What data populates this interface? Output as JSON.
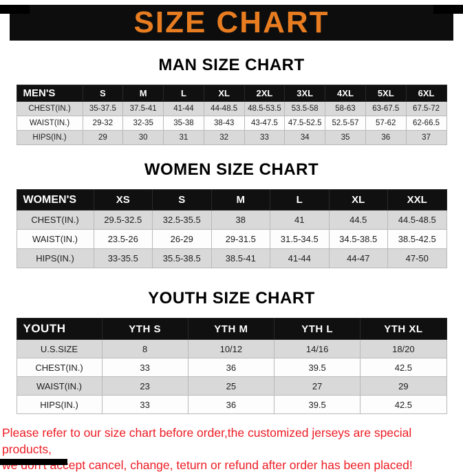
{
  "banner": {
    "title": "SIZE CHART",
    "title_color": "#e87c20",
    "background_color": "#0d0d0d"
  },
  "sections": [
    {
      "heading": "MAN SIZE CHART",
      "table": {
        "header": [
          "MEN'S",
          "S",
          "M",
          "L",
          "XL",
          "2XL",
          "3XL",
          "4XL",
          "5XL",
          "6XL"
        ],
        "rows": [
          [
            "CHEST(IN.)",
            "35-37.5",
            "37.5-41",
            "41-44",
            "44-48.5",
            "48.5-53.5",
            "53.5-58",
            "58-63",
            "63-67.5",
            "67.5-72"
          ],
          [
            "WAIST(IN.)",
            "29-32",
            "32-35",
            "35-38",
            "38-43",
            "43-47.5",
            "47.5-52.5",
            "52.5-57",
            "57-62",
            "62-66.5"
          ],
          [
            "HIPS(IN.)",
            "29",
            "30",
            "31",
            "32",
            "33",
            "34",
            "35",
            "36",
            "37"
          ]
        ]
      }
    },
    {
      "heading": "WOMEN SIZE CHART",
      "table": {
        "header": [
          "WOMEN'S",
          "XS",
          "S",
          "M",
          "L",
          "XL",
          "XXL"
        ],
        "rows": [
          [
            "CHEST(IN.)",
            "29.5-32.5",
            "32.5-35.5",
            "38",
            "41",
            "44.5",
            "44.5-48.5"
          ],
          [
            "WAIST(IN.)",
            "23.5-26",
            "26-29",
            "29-31.5",
            "31.5-34.5",
            "34.5-38.5",
            "38.5-42.5"
          ],
          [
            "HIPS(IN.)",
            "33-35.5",
            "35.5-38.5",
            "38.5-41",
            "41-44",
            "44-47",
            "47-50"
          ]
        ]
      }
    },
    {
      "heading": "YOUTH SIZE CHART",
      "table": {
        "header": [
          "YOUTH",
          "YTH S",
          "YTH M",
          "YTH L",
          "YTH XL"
        ],
        "rows": [
          [
            "U.S.SIZE",
            "8",
            "10/12",
            "14/16",
            "18/20"
          ],
          [
            "CHEST(IN.)",
            "33",
            "36",
            "39.5",
            "42.5"
          ],
          [
            "WAIST(IN.)",
            "23",
            "25",
            "27",
            "29"
          ],
          [
            "HIPS(IN.)",
            "33",
            "36",
            "39.5",
            "42.5"
          ]
        ]
      }
    }
  ],
  "footer": {
    "line1": "Please refer to our size chart before order,the customized jerseys are special products,",
    "line2": "we don't accept cancel, change, teturn or refund after order has been placed!",
    "text_color": "#ed1c24"
  },
  "colors": {
    "table_header_bg": "#101010",
    "row_gray": "#d9d9d9",
    "row_white": "#fdfdfd"
  }
}
